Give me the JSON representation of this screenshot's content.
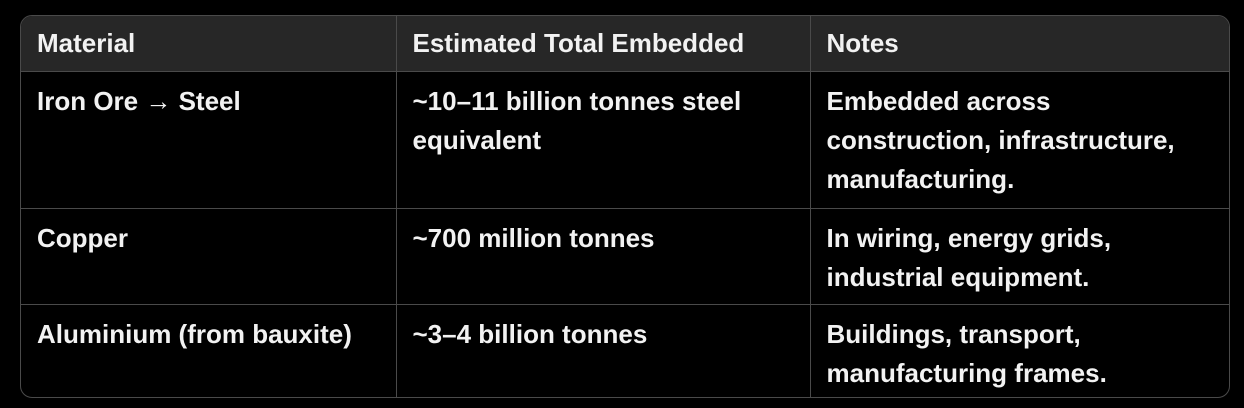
{
  "table": {
    "headers": [
      "Material",
      "Estimated Total Embedded",
      "Notes"
    ],
    "rows": [
      [
        "Iron Ore → Steel",
        "~10–11 billion tonnes steel equivalent",
        "Embedded across construction, infrastructure, manufacturing."
      ],
      [
        "Copper",
        "~700 million tonnes",
        "In wiring, energy grids, industrial equipment."
      ],
      [
        "Aluminium (from bauxite)",
        "~3–4 billion tonnes",
        "Buildings, transport, manufacturing frames."
      ]
    ]
  },
  "colors": {
    "background": "#000000",
    "header_background": "#272727",
    "border": "#4a4a4a",
    "text": "#f2f2f2"
  }
}
